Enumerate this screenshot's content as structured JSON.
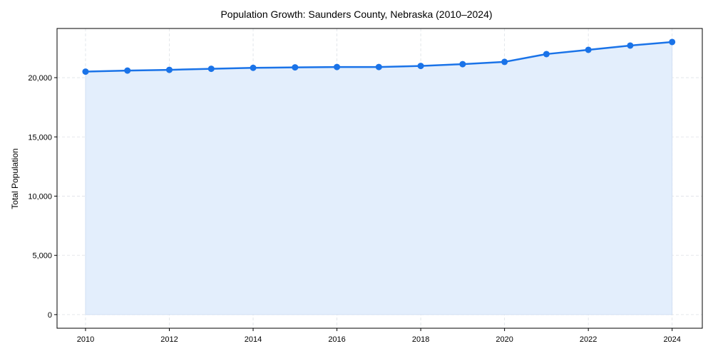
{
  "chart_data": {
    "type": "area",
    "title": "Population Growth: Saunders County, Nebraska (2010–2024)",
    "xlabel": "",
    "ylabel": "Total Population",
    "x": [
      2010,
      2011,
      2012,
      2013,
      2014,
      2015,
      2016,
      2017,
      2018,
      2019,
      2020,
      2021,
      2022,
      2023,
      2024
    ],
    "series": [
      {
        "name": "Total Population",
        "values": [
          20510,
          20600,
          20660,
          20750,
          20830,
          20870,
          20900,
          20900,
          20990,
          21140,
          21330,
          21990,
          22350,
          22710,
          23010
        ],
        "color": "#1a73e8",
        "fill": "#e3eefc",
        "marker": "circle"
      }
    ],
    "xticks": [
      2010,
      2012,
      2014,
      2016,
      2018,
      2020,
      2022,
      2024
    ],
    "yticks": [
      0,
      5000,
      10000,
      15000,
      20000
    ],
    "ytick_labels": [
      "0",
      "5,000",
      "10,000",
      "15,000",
      "20,000"
    ],
    "xlim": [
      2009.32,
      2024.72
    ],
    "ylim": [
      -1150,
      24150
    ],
    "grid": true,
    "legend": null
  }
}
